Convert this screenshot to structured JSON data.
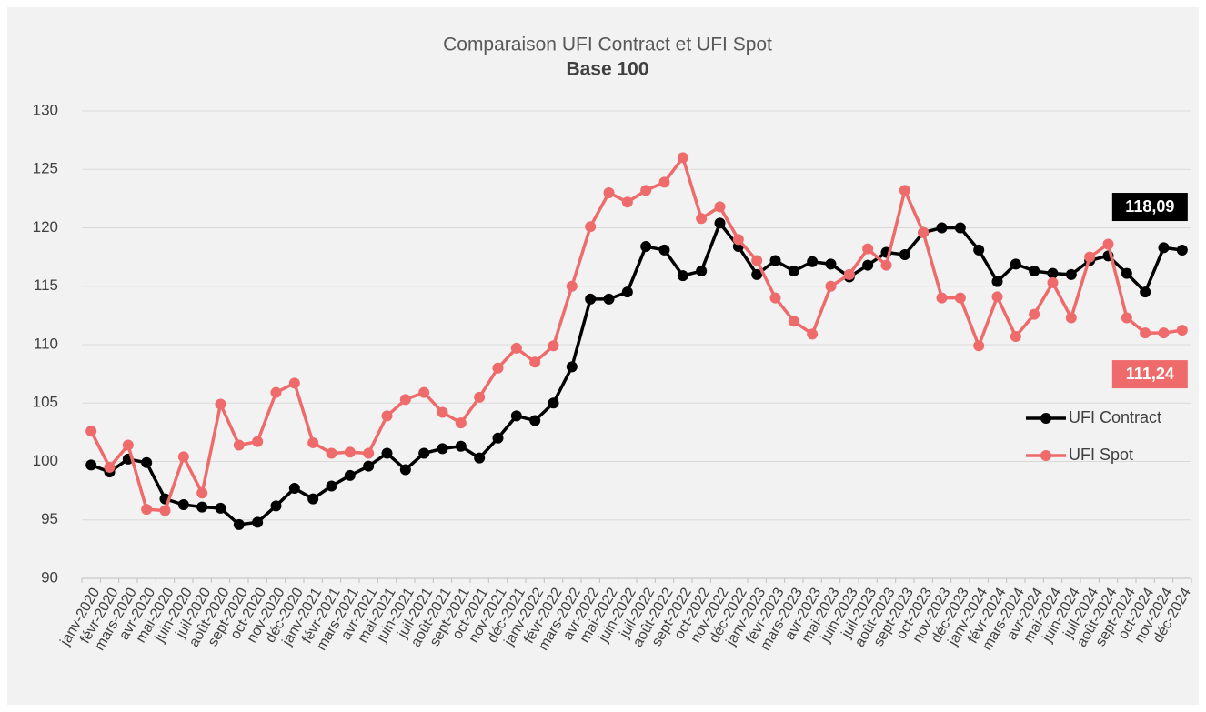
{
  "chart_data": {
    "type": "line",
    "title": "Comparaison UFI Contract et UFI Spot",
    "subtitle": "Base 100",
    "categories": [
      "janv-2020",
      "févr-2020",
      "mars-2020",
      "avr-2020",
      "mai-2020",
      "juin-2020",
      "juil-2020",
      "août-2020",
      "sept-2020",
      "oct-2020",
      "nov-2020",
      "déc-2020",
      "janv-2021",
      "févr-2021",
      "mars-2021",
      "avr-2021",
      "mai-2021",
      "juin-2021",
      "juil-2021",
      "août-2021",
      "sept-2021",
      "oct-2021",
      "nov-2021",
      "déc-2021",
      "janv-2022",
      "févr-2022",
      "mars-2022",
      "avr-2022",
      "mai-2022",
      "juin-2022",
      "juil-2022",
      "août-2022",
      "sept-2022",
      "oct-2022",
      "nov-2022",
      "déc-2022",
      "janv-2023",
      "févr-2023",
      "mars-2023",
      "avr-2023",
      "mai-2023",
      "juin-2023",
      "juil-2023",
      "août-2023",
      "sept-2023",
      "oct-2023",
      "nov-2023",
      "déc-2023",
      "janv-2024",
      "févr-2024",
      "mars-2024",
      "avr-2024",
      "mai-2024",
      "juin-2024",
      "juil-2024",
      "août-2024",
      "sept-2024",
      "oct-2024",
      "nov-2024",
      "déc-2024"
    ],
    "series": [
      {
        "name": "UFI Contract",
        "color": "#000000",
        "values": [
          99.7,
          99.1,
          100.2,
          99.9,
          96.8,
          96.3,
          96.1,
          96.0,
          94.6,
          94.8,
          96.2,
          97.7,
          96.8,
          97.9,
          98.8,
          99.6,
          100.7,
          99.3,
          100.7,
          101.1,
          101.3,
          100.3,
          102.0,
          103.9,
          103.5,
          105.0,
          108.1,
          113.9,
          113.9,
          114.5,
          118.4,
          118.1,
          115.9,
          116.3,
          120.4,
          118.4,
          116.0,
          117.2,
          116.3,
          117.1,
          116.9,
          115.8,
          116.8,
          117.9,
          117.7,
          119.6,
          120.0,
          120.0,
          118.1,
          115.4,
          116.9,
          116.3,
          116.1,
          116.0,
          117.2,
          117.6,
          116.1,
          114.5,
          118.3,
          118.09
        ],
        "value_labels": [
          null,
          null,
          null,
          null,
          null,
          null,
          null,
          null,
          null,
          null,
          null,
          null,
          null,
          null,
          null,
          null,
          null,
          null,
          null,
          null,
          null,
          null,
          null,
          null,
          null,
          null,
          null,
          null,
          null,
          null,
          null,
          null,
          null,
          null,
          null,
          null,
          null,
          null,
          null,
          null,
          null,
          null,
          null,
          null,
          null,
          null,
          null,
          null,
          null,
          null,
          null,
          null,
          null,
          null,
          null,
          null,
          null,
          null,
          null,
          "118,09"
        ]
      },
      {
        "name": "UFI Spot",
        "color": "#ef6b6b",
        "values": [
          102.6,
          99.5,
          101.4,
          95.9,
          95.8,
          100.4,
          97.3,
          104.9,
          101.4,
          101.7,
          105.9,
          106.7,
          101.6,
          100.7,
          100.8,
          100.7,
          103.9,
          105.3,
          105.9,
          104.2,
          103.3,
          105.5,
          108.0,
          109.7,
          108.5,
          109.9,
          115.0,
          120.1,
          123.0,
          122.2,
          123.2,
          123.9,
          126.0,
          120.8,
          121.8,
          119.0,
          117.2,
          114.0,
          112.0,
          110.9,
          115.0,
          116.0,
          118.2,
          116.8,
          123.2,
          119.6,
          114.0,
          114.0,
          109.9,
          114.1,
          110.7,
          112.6,
          115.3,
          112.3,
          117.5,
          118.6,
          112.3,
          111.0,
          111.0,
          111.24
        ],
        "value_labels": [
          null,
          null,
          null,
          null,
          null,
          null,
          null,
          null,
          null,
          null,
          null,
          null,
          null,
          null,
          null,
          null,
          null,
          null,
          null,
          null,
          null,
          null,
          null,
          null,
          null,
          null,
          null,
          null,
          null,
          null,
          null,
          null,
          null,
          null,
          null,
          null,
          null,
          null,
          null,
          null,
          null,
          null,
          null,
          null,
          null,
          null,
          null,
          null,
          null,
          null,
          null,
          null,
          null,
          null,
          null,
          null,
          null,
          null,
          null,
          "111,24"
        ]
      }
    ],
    "ylim": [
      90,
      130
    ],
    "yticks": [
      90,
      95,
      100,
      105,
      110,
      115,
      120,
      125,
      130
    ],
    "grid": true,
    "legend": "right"
  }
}
